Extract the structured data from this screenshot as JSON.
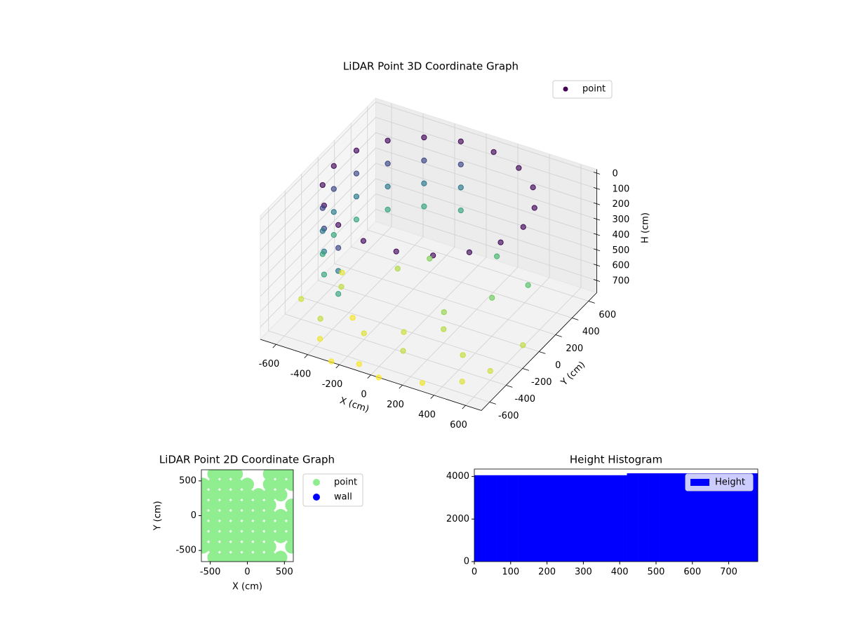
{
  "chart_data": [
    {
      "type": "scatter3d",
      "title": "LiDAR Point 3D Coordinate Graph",
      "xlabel": "X (cm)",
      "ylabel": "Y (cm)",
      "zlabel": "H (cm)",
      "xlim": [
        -700,
        700
      ],
      "ylim": [
        -700,
        700
      ],
      "zlim": [
        -25,
        780
      ],
      "z_inverted": true,
      "xticks": [
        -600,
        -400,
        -200,
        0,
        200,
        400,
        600
      ],
      "yticks": [
        -600,
        -400,
        -200,
        0,
        200,
        400,
        600
      ],
      "zticks": [
        0,
        100,
        200,
        300,
        400,
        500,
        600,
        700
      ],
      "legend": "upper right",
      "grid": true,
      "colormap": [
        "#440154",
        "#3b528b",
        "#21918c",
        "#5ec962",
        "#fde725"
      ],
      "series": [
        {
          "name": "point",
          "color": "#440154",
          "x": [
            600,
            564,
            460,
            300,
            104,
            -104,
            -300,
            -460,
            -564,
            -600,
            -564,
            -460,
            -300,
            -104,
            104,
            300,
            460,
            564,
            -104,
            -300,
            -460,
            -564,
            -600,
            -564,
            -460,
            -300,
            -104,
            -300,
            -460,
            -564,
            -600,
            -564,
            -460,
            -300,
            -104,
            -300,
            -460,
            -564,
            -600,
            -564,
            -460,
            -300,
            -650,
            -500,
            -400,
            -300,
            -200,
            -100,
            0,
            100,
            200,
            300,
            400,
            500,
            650,
            600,
            -600,
            -350,
            150,
            350,
            500,
            -150,
            250,
            -450,
            50,
            -250
          ],
          "y": [
            0,
            205,
            386,
            520,
            591,
            591,
            520,
            386,
            205,
            0,
            -205,
            -386,
            -520,
            -591,
            -591,
            -520,
            -386,
            -205,
            591,
            520,
            386,
            205,
            0,
            -205,
            -386,
            -520,
            591,
            520,
            386,
            205,
            0,
            -205,
            -386,
            -520,
            591,
            520,
            386,
            205,
            0,
            -205,
            -386,
            -520,
            -300,
            -100,
            -550,
            200,
            -400,
            -650,
            -300,
            -500,
            -200,
            -650,
            -350,
            -550,
            -100,
            -400,
            100,
            -250,
            -100,
            100,
            250,
            300,
            350,
            -450,
            -700,
            -700
          ],
          "h": [
            0,
            0,
            0,
            0,
            0,
            0,
            0,
            0,
            0,
            0,
            0,
            0,
            0,
            0,
            0,
            0,
            0,
            0,
            150,
            150,
            150,
            150,
            150,
            150,
            150,
            150,
            300,
            300,
            300,
            300,
            300,
            300,
            300,
            300,
            450,
            450,
            450,
            450,
            450,
            450,
            450,
            450,
            720,
            700,
            760,
            680,
            740,
            770,
            720,
            700,
            690,
            760,
            710,
            740,
            700,
            720,
            750,
            770,
            650,
            600,
            550,
            620,
            500,
            700,
            780,
            775
          ]
        }
      ]
    },
    {
      "type": "scatter",
      "title": "LiDAR Point 2D Coordinate Graph",
      "xlabel": "X (cm)",
      "ylabel": "Y (cm)",
      "xlim": [
        -620,
        620
      ],
      "ylim": [
        -660,
        660
      ],
      "xticks": [
        -500,
        0,
        500
      ],
      "yticks": [
        -500,
        0,
        500
      ],
      "legend": "outside right",
      "series": [
        {
          "name": "point",
          "color": "#90ee90",
          "x": [
            -450,
            -300,
            -150,
            300,
            450,
            600,
            -600,
            -450,
            -300,
            -150,
            0,
            300,
            450,
            600,
            -600,
            -450,
            -300,
            -150,
            0,
            150,
            300,
            450,
            -600,
            -450,
            -300,
            -150,
            0,
            150,
            300,
            600,
            -600,
            -450,
            -300,
            -150,
            0,
            150,
            300,
            450,
            600,
            -600,
            -450,
            -300,
            -150,
            0,
            150,
            300,
            450,
            600,
            -600,
            -450,
            -300,
            -150,
            0,
            150,
            300,
            450,
            600,
            -600,
            -450,
            -300,
            -150,
            0,
            150,
            300,
            600,
            -450,
            -300,
            -150,
            0,
            150,
            300,
            450
          ],
          "y": [
            600,
            600,
            600,
            600,
            600,
            600,
            450,
            450,
            450,
            450,
            450,
            450,
            450,
            450,
            300,
            300,
            300,
            300,
            300,
            300,
            300,
            300,
            150,
            150,
            150,
            150,
            150,
            150,
            150,
            150,
            0,
            0,
            0,
            0,
            0,
            0,
            0,
            0,
            0,
            -150,
            -150,
            -150,
            -150,
            -150,
            -150,
            -150,
            -150,
            -150,
            -300,
            -300,
            -300,
            -300,
            -300,
            -300,
            -300,
            -300,
            -300,
            -450,
            -450,
            -450,
            -450,
            -450,
            -450,
            -450,
            -450,
            -600,
            -600,
            -600,
            -600,
            -600,
            -600,
            -600
          ]
        },
        {
          "name": "wall",
          "color": "#0000ff",
          "x": [],
          "y": []
        }
      ]
    },
    {
      "type": "histogram",
      "title": "Height Histogram",
      "xlim": [
        0,
        780
      ],
      "ylim": [
        0,
        4350
      ],
      "xticks": [
        0,
        100,
        200,
        300,
        400,
        500,
        600,
        700
      ],
      "yticks": [
        0,
        2000,
        4000
      ],
      "legend": "upper right",
      "bins": [
        0,
        30,
        60,
        90,
        120,
        150,
        180,
        210,
        240,
        270,
        300,
        330,
        360,
        390,
        420,
        450,
        480,
        510,
        540,
        570,
        600,
        630,
        660,
        690,
        720,
        750,
        780
      ],
      "series": [
        {
          "name": "Height",
          "color": "#0000ff",
          "values": [
            4060,
            4060,
            4060,
            4060,
            4060,
            4060,
            4060,
            4060,
            4060,
            4060,
            4060,
            4060,
            4060,
            4060,
            4150,
            4150,
            4150,
            4150,
            4150,
            4150,
            4150,
            4150,
            4150,
            4150,
            4150,
            4150
          ]
        }
      ]
    }
  ]
}
